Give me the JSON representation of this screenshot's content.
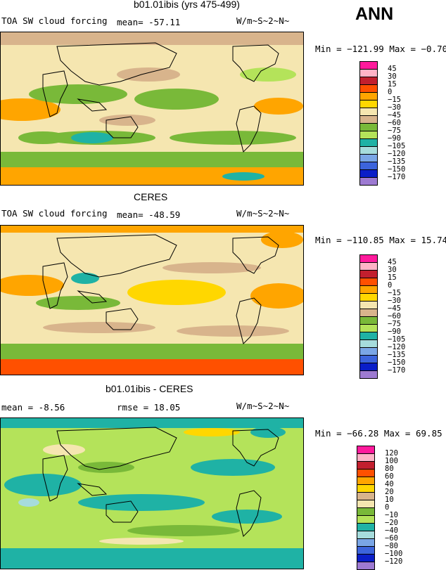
{
  "season": "ANN",
  "panels": [
    {
      "title": "b01.01ibis (yrs 475-499)",
      "left_label": "TOA SW cloud forcing",
      "mid_label": "mean=  -57.11",
      "units": "W/m~S~2~N~",
      "minmax": "Min = −121.99  Max =   −0.70",
      "levels": [
        "45",
        "30",
        "15",
        "0",
        "−15",
        "−30",
        "−45",
        "−60",
        "−75",
        "−90",
        "−105",
        "−120",
        "−135",
        "−150",
        "−170"
      ],
      "colors": [
        "#ff1a9c",
        "#ffb3c7",
        "#c21f2e",
        "#ff5000",
        "#ffa500",
        "#ffd700",
        "#f5e6b0",
        "#d8b48c",
        "#79b939",
        "#b4e35a",
        "#1fb2a5",
        "#a6dcdc",
        "#7aa6e6",
        "#3c64dc",
        "#0a1ec8",
        "#9d7ad2"
      ]
    },
    {
      "title": "CERES",
      "left_label": "TOA SW cloud forcing",
      "mid_label": "mean=  -48.59",
      "units": "W/m~S~2~N~",
      "minmax": "Min = −110.85  Max =   15.74",
      "levels": [
        "45",
        "30",
        "15",
        "0",
        "−15",
        "−30",
        "−45",
        "−60",
        "−75",
        "−90",
        "−105",
        "−120",
        "−135",
        "−150",
        "−170"
      ],
      "colors": [
        "#ff1a9c",
        "#ffb3c7",
        "#c21f2e",
        "#ff5000",
        "#ffa500",
        "#ffd700",
        "#f5e6b0",
        "#d8b48c",
        "#79b939",
        "#b4e35a",
        "#1fb2a5",
        "#a6dcdc",
        "#7aa6e6",
        "#3c64dc",
        "#0a1ec8",
        "#9d7ad2"
      ]
    },
    {
      "title": "b01.01ibis - CERES",
      "left_label": "mean =   -8.56",
      "mid_label": "rmse =  18.05",
      "units": "W/m~S~2~N~",
      "minmax": "Min = −66.28  Max =   69.85",
      "levels": [
        "120",
        "100",
        "80",
        "60",
        "40",
        "20",
        "10",
        "0",
        "−10",
        "−20",
        "−40",
        "−60",
        "−80",
        "−100",
        "−120"
      ],
      "colors": [
        "#ff1a9c",
        "#ffb3c7",
        "#c21f2e",
        "#ff5000",
        "#ffa500",
        "#ffd700",
        "#d8b48c",
        "#f5e6b0",
        "#79b939",
        "#b4e35a",
        "#1fb2a5",
        "#a6dcdc",
        "#7aa6e6",
        "#3c64dc",
        "#0a1ec8",
        "#9d7ad2"
      ]
    }
  ],
  "chart_data": [
    {
      "type": "heatmap",
      "title": "b01.01ibis (yrs 475-499)",
      "variable": "TOA SW cloud forcing",
      "units": "W/m~S~2~N~",
      "mean": -57.11,
      "min": -121.99,
      "max": -0.7,
      "contour_levels": [
        45,
        30,
        15,
        0,
        -15,
        -30,
        -45,
        -60,
        -75,
        -90,
        -105,
        -120,
        -135,
        -150,
        -170
      ]
    },
    {
      "type": "heatmap",
      "title": "CERES",
      "variable": "TOA SW cloud forcing",
      "units": "W/m~S~2~N~",
      "mean": -48.59,
      "min": -110.85,
      "max": 15.74,
      "contour_levels": [
        45,
        30,
        15,
        0,
        -15,
        -30,
        -45,
        -60,
        -75,
        -90,
        -105,
        -120,
        -135,
        -150,
        -170
      ]
    },
    {
      "type": "heatmap",
      "title": "b01.01ibis - CERES",
      "units": "W/m~S~2~N~",
      "mean": -8.56,
      "rmse": 18.05,
      "min": -66.28,
      "max": 69.85,
      "contour_levels": [
        120,
        100,
        80,
        60,
        40,
        20,
        10,
        0,
        -10,
        -20,
        -40,
        -60,
        -80,
        -100,
        -120
      ]
    }
  ]
}
